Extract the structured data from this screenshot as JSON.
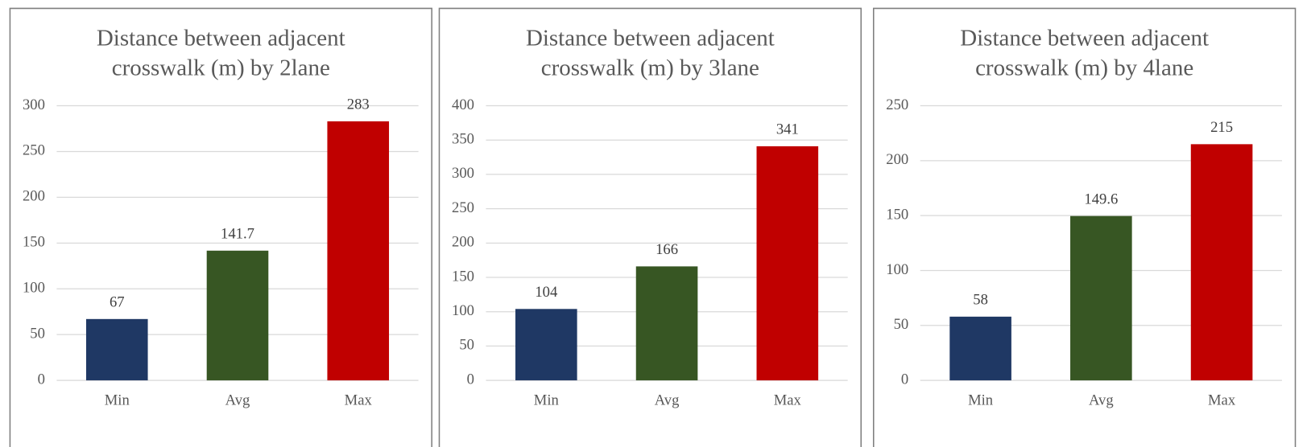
{
  "chart_data": [
    {
      "type": "bar",
      "title": [
        "Distance between adjacent",
        "crosswalk (m) by 2lane"
      ],
      "categories": [
        "Min",
        "Avg",
        "Max"
      ],
      "values": [
        67,
        141.7,
        283
      ],
      "colors": [
        "#1f3864",
        "#375623",
        "#c00000"
      ],
      "ylim": [
        0,
        300
      ],
      "yticks": [
        0,
        50,
        100,
        150,
        200,
        250,
        300
      ],
      "grid": true
    },
    {
      "type": "bar",
      "title": [
        "Distance between adjacent",
        "crosswalk (m) by 3lane"
      ],
      "categories": [
        "Min",
        "Avg",
        "Max"
      ],
      "values": [
        104,
        166,
        341
      ],
      "colors": [
        "#1f3864",
        "#375623",
        "#c00000"
      ],
      "ylim": [
        0,
        400
      ],
      "yticks": [
        0,
        50,
        100,
        150,
        200,
        250,
        300,
        350,
        400
      ],
      "grid": true
    },
    {
      "type": "bar",
      "title": [
        "Distance between adjacent",
        "crosswalk (m) by 4lane"
      ],
      "categories": [
        "Min",
        "Avg",
        "Max"
      ],
      "values": [
        58,
        149.6,
        215
      ],
      "colors": [
        "#1f3864",
        "#375623",
        "#c00000"
      ],
      "ylim": [
        0,
        250
      ],
      "yticks": [
        0,
        50,
        100,
        150,
        200,
        250
      ],
      "grid": true
    }
  ]
}
